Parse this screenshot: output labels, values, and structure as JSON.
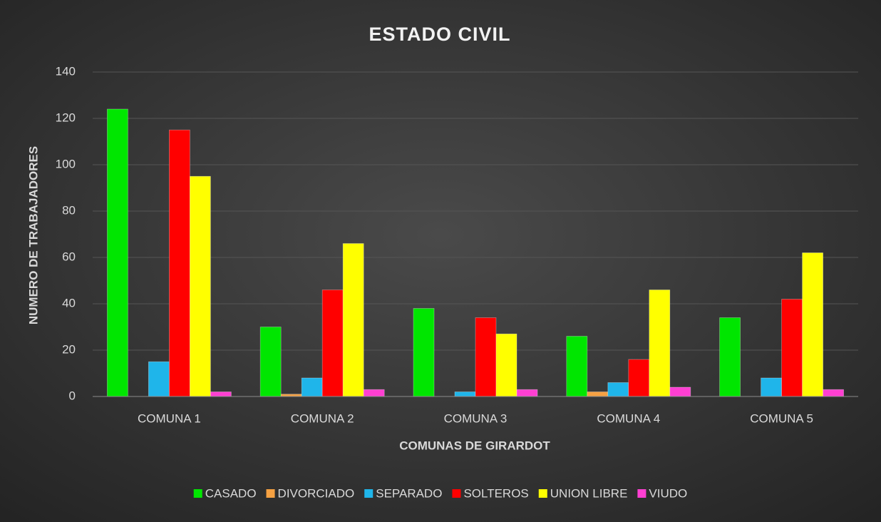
{
  "chart_data": {
    "type": "bar",
    "title": "ESTADO CIVIL",
    "x_label": "COMUNAS DE GIRARDOT",
    "y_label": "NUMERO DE TRABAJADORES",
    "categories": [
      "COMUNA 1",
      "COMUNA 2",
      "COMUNA 3",
      "COMUNA 4",
      "COMUNA 5"
    ],
    "series": [
      {
        "name": "CASADO",
        "color": "#00e600",
        "values": [
          124,
          30,
          38,
          26,
          34
        ]
      },
      {
        "name": "DIVORCIADO",
        "color": "#f5a142",
        "values": [
          0,
          1,
          0,
          2,
          0
        ]
      },
      {
        "name": "SEPARADO",
        "color": "#1fb5ea",
        "values": [
          15,
          8,
          2,
          6,
          8
        ]
      },
      {
        "name": "SOLTEROS",
        "color": "#ff0000",
        "values": [
          115,
          46,
          34,
          16,
          42
        ]
      },
      {
        "name": "UNION LIBRE",
        "color": "#ffff00",
        "values": [
          95,
          66,
          27,
          46,
          62
        ]
      },
      {
        "name": "VIUDO",
        "color": "#ff3fd2",
        "values": [
          2,
          3,
          3,
          4,
          3
        ]
      }
    ],
    "ylim": [
      0,
      140
    ],
    "yticks": [
      0,
      20,
      40,
      60,
      80,
      100,
      120,
      140
    ],
    "grid": true,
    "legend": "bottom"
  }
}
